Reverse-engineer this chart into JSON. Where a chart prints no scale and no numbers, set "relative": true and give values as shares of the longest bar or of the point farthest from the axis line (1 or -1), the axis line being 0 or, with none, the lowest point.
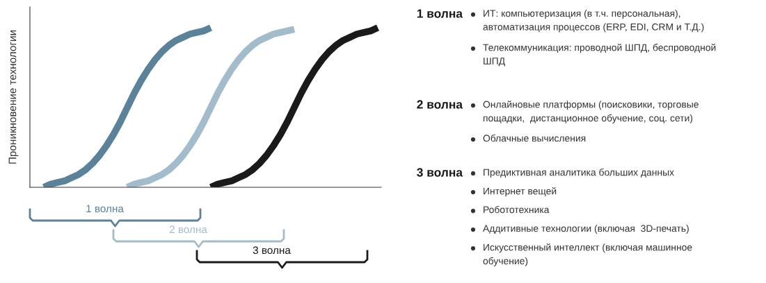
{
  "chart_data": [
    {
      "type": "line",
      "relative": true,
      "ylabel": "Проникновение технологии",
      "line_style": "solid",
      "legend": false,
      "categories": [
        null,
        null,
        null,
        null,
        null,
        null,
        null,
        null,
        null,
        null,
        null,
        null,
        null,
        null,
        null,
        null,
        null,
        null,
        null,
        null,
        null,
        null,
        null,
        null,
        null,
        null,
        null,
        null,
        null,
        null,
        null,
        null,
        null,
        null,
        null,
        null,
        null,
        null,
        null,
        null,
        null,
        null,
        null,
        null,
        null,
        null,
        null,
        null,
        null,
        null,
        null
      ],
      "series": [
        {
          "name": "1 волна",
          "color": "#5a8299",
          "values": [
            null,
            null,
            0,
            0.02,
            0.03,
            0.04,
            0.06,
            0.08,
            0.11,
            0.15,
            0.2,
            0.26,
            0.33,
            0.41,
            0.5,
            0.59,
            0.67,
            0.74,
            0.8,
            0.85,
            0.89,
            0.92,
            0.94,
            0.96,
            0.97,
            0.98,
            1,
            null,
            null,
            null,
            null,
            null,
            null,
            null,
            null,
            null,
            null,
            null,
            null,
            null,
            null,
            null,
            null,
            null,
            null,
            null,
            null,
            null,
            null,
            null,
            null
          ]
        },
        {
          "name": "2 волна",
          "color": "#a3bccc",
          "values": [
            null,
            null,
            null,
            null,
            null,
            null,
            null,
            null,
            null,
            null,
            null,
            null,
            null,
            null,
            0,
            0.02,
            0.03,
            0.04,
            0.06,
            0.08,
            0.11,
            0.15,
            0.2,
            0.26,
            0.33,
            0.41,
            0.5,
            0.59,
            0.67,
            0.74,
            0.8,
            0.85,
            0.89,
            0.92,
            0.94,
            0.96,
            0.97,
            0.98,
            0.99,
            null,
            null,
            null,
            null,
            null,
            null,
            null,
            null,
            null,
            null,
            null,
            null
          ]
        },
        {
          "name": "3 волна",
          "color": "#1a1a1a",
          "values": [
            null,
            null,
            null,
            null,
            null,
            null,
            null,
            null,
            null,
            null,
            null,
            null,
            null,
            null,
            null,
            null,
            null,
            null,
            null,
            null,
            null,
            null,
            null,
            null,
            null,
            null,
            0,
            0.02,
            0.03,
            0.04,
            0.06,
            0.08,
            0.11,
            0.15,
            0.2,
            0.26,
            0.33,
            0.41,
            0.5,
            0.59,
            0.67,
            0.74,
            0.8,
            0.85,
            0.89,
            0.92,
            0.94,
            0.96,
            0.97,
            0.98,
            1
          ]
        }
      ]
    },
    {
      "type": "other",
      "title": "1 волна",
      "annotations": [
        "ИТ: компьютеризация (в т.ч. персональная),\nавтоматизация процессов (ERP, EDI, CRM и Т.Д.)",
        "Телекоммуникация: проводной ШПД, беспроводной\nШПД"
      ]
    },
    {
      "type": "other",
      "title": "2 волна",
      "annotations": [
        "Онлайновые платформы (поисковики, торговые\nпощадки,  дистанционное обучение, соц. сети)",
        "Облачные вычисления"
      ]
    },
    {
      "type": "other",
      "title": "3 волна",
      "annotations": [
        "Предиктивная аналитика больших данных",
        "Интернет вещей",
        "Робототехника",
        "Аддитивные технологии (включая  3D-печать)",
        "Искусственный интеллект (включая машинное\nобучение)"
      ]
    }
  ]
}
